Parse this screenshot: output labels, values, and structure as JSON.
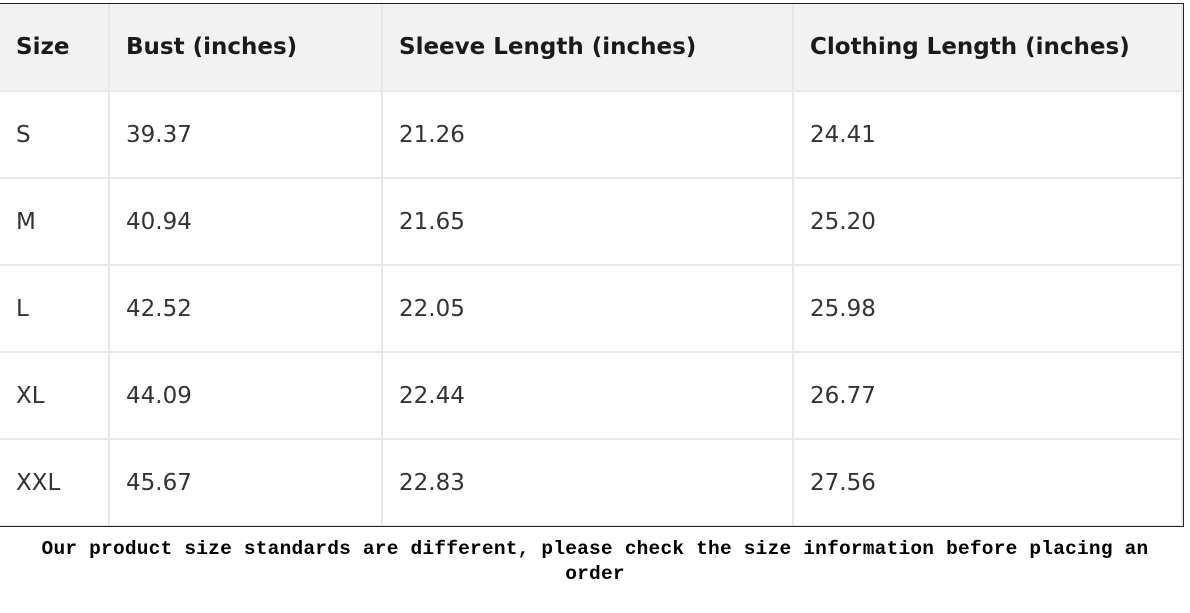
{
  "table": {
    "headers": [
      "Size",
      "Bust (inches)",
      "Sleeve Length (inches)",
      "Clothing Length (inches)"
    ],
    "rows": [
      [
        "S",
        "39.37",
        "21.26",
        "24.41"
      ],
      [
        "M",
        "40.94",
        "21.65",
        "25.20"
      ],
      [
        "L",
        "42.52",
        "22.05",
        "25.98"
      ],
      [
        "XL",
        "44.09",
        "22.44",
        "26.77"
      ],
      [
        "XXL",
        "45.67",
        "22.83",
        "27.56"
      ]
    ]
  },
  "caption": "Our product size standards are different, please check the size information before placing an order"
}
